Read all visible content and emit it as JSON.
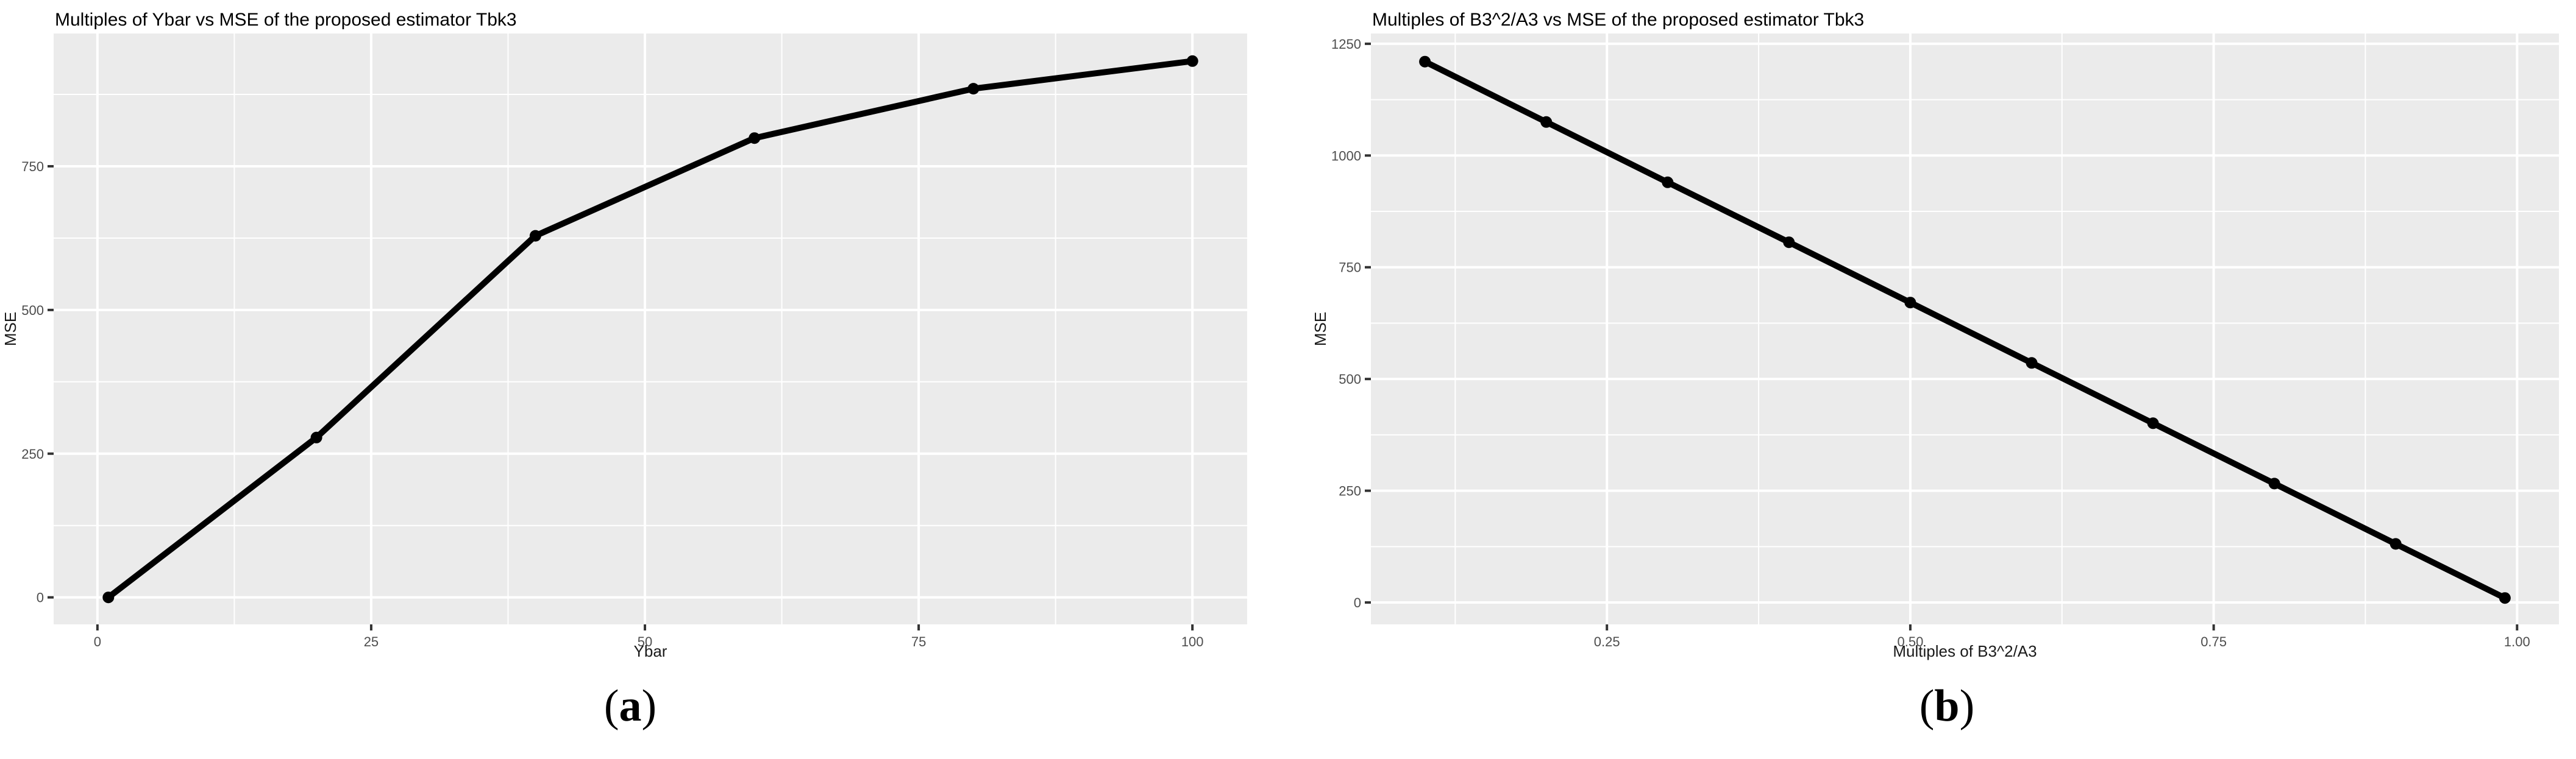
{
  "figure": {
    "background": "#ffffff",
    "panel_bg": "#ebebeb",
    "grid_color": "#ffffff",
    "line_color": "#000000",
    "point_color": "#000000",
    "tick_mark_color": "#333333",
    "tick_label_color": "#4d4d4d",
    "axis_title_color": "#1a1a1a",
    "title_color": "#000000"
  },
  "chart_data": [
    {
      "type": "line",
      "title": "Multiples of Ybar vs MSE of the proposed estimator Tbk3",
      "xlabel": "Ybar",
      "ylabel": "MSE",
      "caption": {
        "open": "(",
        "letter": "a",
        "close": ")"
      },
      "x": [
        1,
        20,
        40,
        60,
        80,
        100
      ],
      "y": [
        0,
        278,
        629,
        799,
        885,
        933
      ],
      "x_ticks": [
        0,
        25,
        50,
        75,
        100
      ],
      "x_tick_labels": [
        "0",
        "25",
        "50",
        "75",
        "100"
      ],
      "x_minor_ticks": [
        12.5,
        37.5,
        62.5,
        87.5
      ],
      "y_ticks": [
        0,
        250,
        500,
        750
      ],
      "y_tick_labels": [
        "0",
        "250",
        "500",
        "750"
      ],
      "y_minor_ticks": [
        125,
        375,
        625,
        875
      ],
      "xlim": [
        -4.0,
        105.0
      ],
      "ylim": [
        -47,
        981
      ],
      "grid": true,
      "legend": "none"
    },
    {
      "type": "line",
      "title": "Multiples of B3^2/A3 vs MSE of the proposed estimator Tbk3",
      "xlabel": "Multiples of B3^2/A3",
      "ylabel": "MSE",
      "caption": {
        "open": "(",
        "letter": "b",
        "close": ")"
      },
      "x": [
        0.1,
        0.2,
        0.3,
        0.4,
        0.5,
        0.6,
        0.7,
        0.8,
        0.9,
        0.99
      ],
      "y": [
        1210,
        1075,
        940,
        806,
        671,
        536,
        401,
        266,
        131,
        10
      ],
      "x_ticks": [
        0.25,
        0.5,
        0.75,
        1.0
      ],
      "x_tick_labels": [
        "0.25",
        "0.50",
        "0.75",
        "1.00"
      ],
      "x_minor_ticks": [
        0.125,
        0.375,
        0.625,
        0.875
      ],
      "y_ticks": [
        0,
        250,
        500,
        750,
        1000,
        1250
      ],
      "y_tick_labels": [
        "0",
        "250",
        "500",
        "750",
        "1000",
        "1250"
      ],
      "y_minor_ticks": [
        125,
        375,
        625,
        875,
        1125
      ],
      "xlim": [
        0.0555,
        1.0345
      ],
      "ylim": [
        -49,
        1273
      ],
      "grid": true,
      "legend": "none"
    }
  ]
}
